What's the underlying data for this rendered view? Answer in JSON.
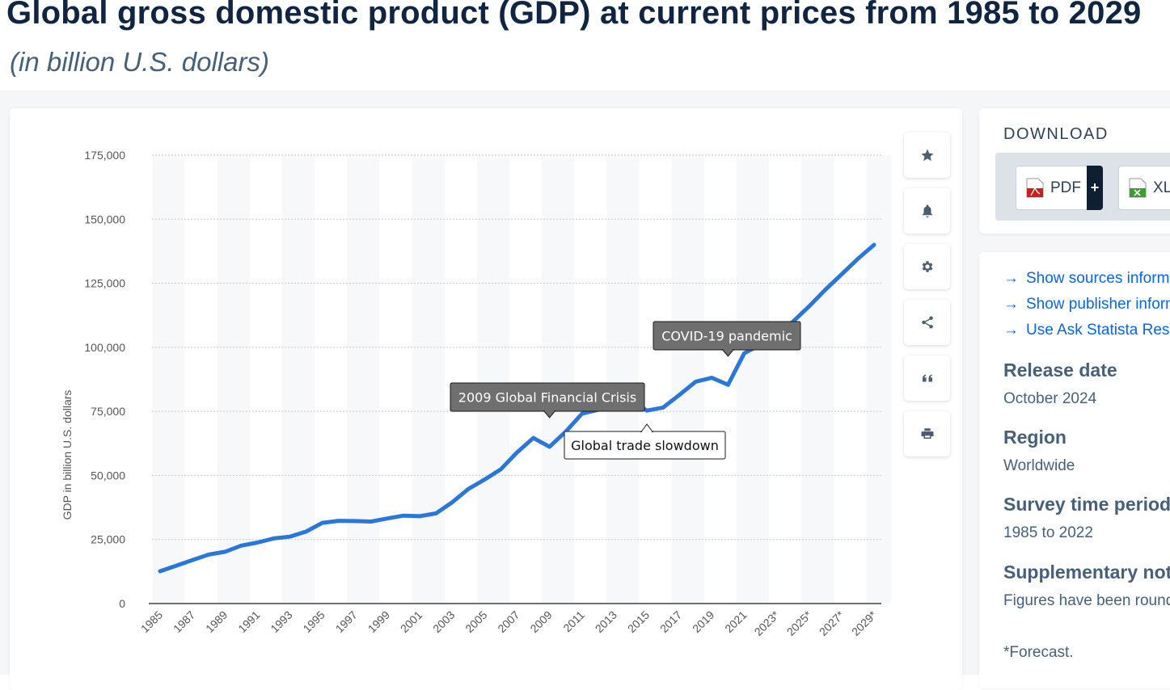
{
  "header": {
    "title": "Global gross domestic product (GDP) at current prices from 1985 to 2029",
    "subtitle": "(in billion U.S. dollars)"
  },
  "toolbar": {
    "buttons": [
      "star-icon",
      "bell-icon",
      "gear-icon",
      "share-icon",
      "quote-icon",
      "print-icon"
    ]
  },
  "download": {
    "title": "DOWNLOAD",
    "pdf_label": "PDF",
    "pdf_plus": "+",
    "xls_label": "XLS"
  },
  "info": {
    "links": [
      "Show sources information",
      "Show publisher information",
      "Use Ask Statista Research Service"
    ],
    "release_date_label": "Release date",
    "release_date_value": "October 2024",
    "region_label": "Region",
    "region_value": "Worldwide",
    "survey_label": "Survey time period",
    "survey_value": "1985 to 2022",
    "supplementary_label": "Supplementary notes",
    "supplementary_value": "Figures have been rounded.",
    "forecast_note": "*Forecast."
  },
  "colors": {
    "line": "#2a77d9",
    "title": "#0f2541",
    "link": "#0666e5",
    "annotation_dark": "#6f6f6f"
  },
  "chart_data": {
    "type": "line",
    "ylabel": "GDP in billion U.S. dollars",
    "ylim": [
      0,
      175000
    ],
    "yticks": [
      0,
      25000,
      50000,
      75000,
      100000,
      125000,
      150000,
      175000
    ],
    "ytick_labels": [
      "0",
      "25,000",
      "50,000",
      "75,000",
      "100,000",
      "125,000",
      "150,000",
      "175,000"
    ],
    "x": [
      "1985",
      "1986",
      "1987",
      "1988",
      "1989",
      "1990",
      "1991",
      "1992",
      "1993",
      "1994",
      "1995",
      "1996",
      "1997",
      "1998",
      "1999",
      "2000",
      "2001",
      "2002",
      "2003",
      "2004",
      "2005",
      "2006",
      "2007",
      "2008",
      "2009",
      "2010",
      "2011",
      "2012",
      "2013",
      "2014",
      "2015",
      "2016",
      "2017",
      "2018",
      "2019",
      "2020",
      "2021",
      "2022",
      "2023*",
      "2024*",
      "2025*",
      "2026*",
      "2027*",
      "2028*",
      "2029*"
    ],
    "xtick_labels": [
      "1985",
      "1987",
      "1989",
      "1991",
      "1993",
      "1995",
      "1997",
      "1999",
      "2001",
      "2003",
      "2005",
      "2007",
      "2009",
      "2011",
      "2013",
      "2015",
      "2017",
      "2019",
      "2021",
      "2023*",
      "2025*",
      "2027*",
      "2029*"
    ],
    "series": [
      {
        "values": [
          12600,
          14800,
          17000,
          19100,
          20200,
          22600,
          23800,
          25400,
          26100,
          28100,
          31500,
          32300,
          32200,
          32000,
          33200,
          34300,
          34100,
          35200,
          39500,
          44700,
          48400,
          52400,
          59000,
          64600,
          61200,
          67100,
          74100,
          75600,
          77600,
          79500,
          75300,
          76500,
          81400,
          86600,
          88100,
          85400,
          97700,
          101000,
          105000,
          110000,
          116000,
          122500,
          128500,
          134500,
          140000
        ]
      }
    ],
    "annotations": [
      {
        "text": "2009 Global Financial Crisis",
        "x": "2009",
        "style": "dark"
      },
      {
        "text": "Global trade slowdown",
        "x": "2015",
        "style": "light"
      },
      {
        "text": "COVID-19 pandemic",
        "x": "2020",
        "style": "dark"
      }
    ],
    "grid": true,
    "legend": "none"
  }
}
